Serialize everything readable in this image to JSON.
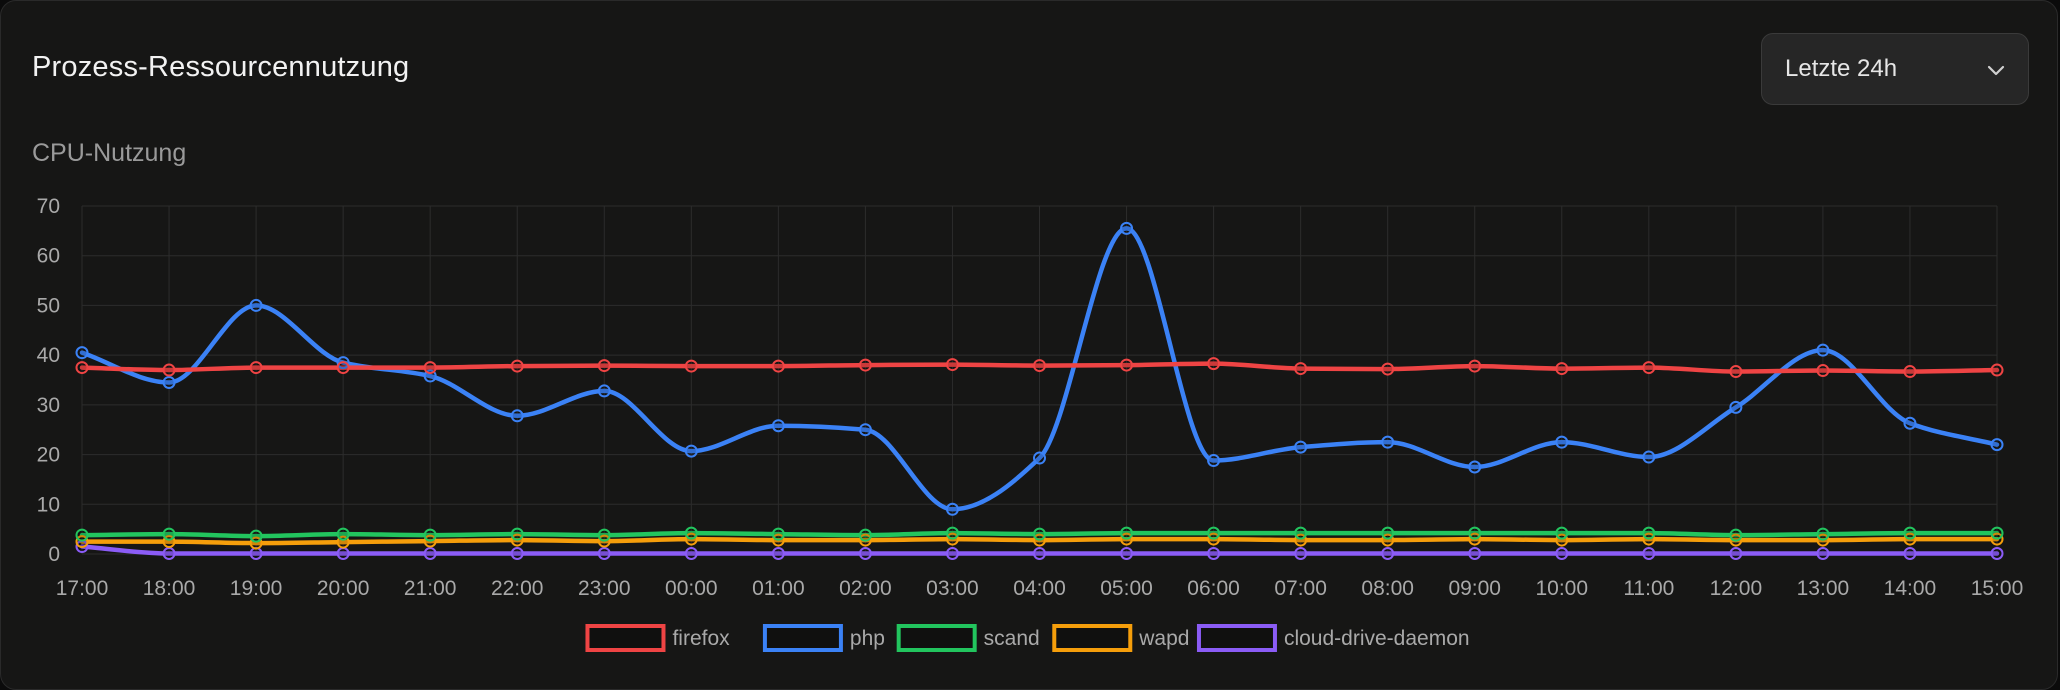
{
  "header": {
    "title": "Prozess-Ressourcennutzung",
    "range_label": "Letzte 24h"
  },
  "chart_section": {
    "label": "CPU-Nutzung"
  },
  "colors": {
    "firefox": "#ef4444",
    "php": "#3b82f6",
    "scand": "#22c55e",
    "wapd": "#f59e0b",
    "cloud-drive-daemon": "#8b5cf6"
  },
  "chart_data": {
    "type": "line",
    "title": "CPU-Nutzung",
    "xlabel": "",
    "ylabel": "",
    "ylim": [
      0,
      70
    ],
    "yticks": [
      0,
      10,
      20,
      30,
      40,
      50,
      60,
      70
    ],
    "grid": true,
    "legend": "bottom-center",
    "categories": [
      "17:00",
      "18:00",
      "19:00",
      "20:00",
      "21:00",
      "22:00",
      "23:00",
      "00:00",
      "01:00",
      "02:00",
      "03:00",
      "04:00",
      "05:00",
      "06:00",
      "07:00",
      "08:00",
      "09:00",
      "10:00",
      "11:00",
      "12:00",
      "13:00",
      "14:00",
      "15:00"
    ],
    "series": [
      {
        "name": "firefox",
        "color": "#ef4444",
        "values": [
          37.5,
          37.0,
          37.5,
          37.5,
          37.5,
          37.8,
          37.9,
          37.8,
          37.8,
          38.0,
          38.1,
          37.9,
          38.0,
          38.3,
          37.3,
          37.2,
          37.8,
          37.3,
          37.5,
          36.7,
          36.9,
          36.7,
          37.0
        ]
      },
      {
        "name": "php",
        "color": "#3b82f6",
        "values": [
          40.5,
          34.5,
          50.0,
          38.5,
          35.8,
          27.8,
          32.8,
          20.7,
          25.8,
          25.0,
          9.0,
          19.3,
          65.5,
          18.8,
          21.5,
          22.5,
          17.5,
          22.5,
          19.5,
          29.5,
          41.0,
          26.3,
          22.0
        ]
      },
      {
        "name": "scand",
        "color": "#22c55e",
        "values": [
          3.8,
          4.0,
          3.6,
          4.0,
          3.8,
          4.0,
          3.8,
          4.2,
          4.0,
          3.8,
          4.2,
          4.0,
          4.2,
          4.2,
          4.2,
          4.2,
          4.2,
          4.2,
          4.2,
          3.8,
          4.0,
          4.2,
          4.2
        ]
      },
      {
        "name": "wapd",
        "color": "#f59e0b",
        "values": [
          2.5,
          2.5,
          2.2,
          2.4,
          2.6,
          2.8,
          2.6,
          3.0,
          2.8,
          2.8,
          3.0,
          2.8,
          3.0,
          3.0,
          2.8,
          2.8,
          3.0,
          2.8,
          3.0,
          2.8,
          2.8,
          3.0,
          3.0
        ]
      },
      {
        "name": "cloud-drive-daemon",
        "color": "#8b5cf6",
        "values": [
          1.5,
          0.1,
          0.1,
          0.1,
          0.1,
          0.1,
          0.1,
          0.1,
          0.1,
          0.1,
          0.1,
          0.1,
          0.1,
          0.1,
          0.1,
          0.1,
          0.1,
          0.1,
          0.1,
          0.1,
          0.1,
          0.1,
          0.1
        ]
      }
    ]
  }
}
